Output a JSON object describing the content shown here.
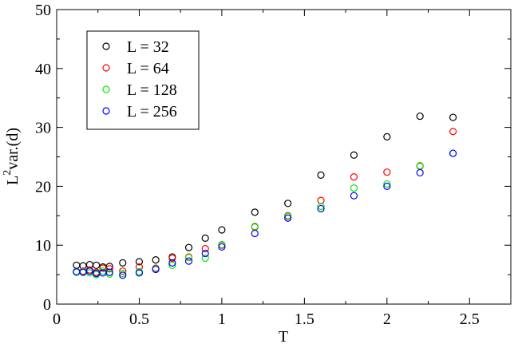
{
  "chart_data": {
    "type": "scatter",
    "xlabel": "T",
    "ylabel_main": "L",
    "ylabel_sup": "2",
    "ylabel_rest": "var.(d)",
    "xlim": [
      0,
      2.75
    ],
    "ylim": [
      0,
      50
    ],
    "xticks": [
      0,
      0.5,
      1,
      1.5,
      2,
      2.5
    ],
    "xtick_labels": [
      "0",
      "0.5",
      "1",
      "1.5",
      "2",
      "2.5"
    ],
    "yticks": [
      0,
      10,
      20,
      30,
      40,
      50
    ],
    "ytick_labels": [
      "0",
      "10",
      "20",
      "30",
      "40",
      "50"
    ],
    "grid": false,
    "legend_position": "top-left",
    "marker": "open-circle",
    "series": [
      {
        "name": "L = 32",
        "color": "#000000",
        "x": [
          0.12,
          0.16,
          0.2,
          0.24,
          0.28,
          0.32,
          0.4,
          0.5,
          0.6,
          0.7,
          0.8,
          0.9,
          1.0,
          1.2,
          1.4,
          1.6,
          1.8,
          2.0,
          2.2,
          2.4
        ],
        "y": [
          6.6,
          6.5,
          6.7,
          6.6,
          6.3,
          6.4,
          7.0,
          7.2,
          7.5,
          8.0,
          9.6,
          11.2,
          12.6,
          15.6,
          17.1,
          21.9,
          25.3,
          28.4,
          31.9,
          31.7
        ]
      },
      {
        "name": "L = 64",
        "color": "#ff0000",
        "x": [
          0.12,
          0.16,
          0.2,
          0.24,
          0.28,
          0.32,
          0.4,
          0.5,
          0.6,
          0.7,
          0.8,
          0.9,
          1.0,
          1.2,
          1.4,
          1.6,
          1.8,
          2.0,
          2.2,
          2.4
        ],
        "y": [
          5.5,
          5.6,
          5.8,
          5.4,
          6.1,
          6.0,
          5.6,
          6.3,
          6.1,
          7.8,
          8.0,
          9.4,
          10.0,
          13.1,
          15.0,
          17.6,
          21.6,
          22.4,
          23.4,
          29.3
        ]
      },
      {
        "name": "L = 128",
        "color": "#00ee00",
        "x": [
          0.12,
          0.16,
          0.2,
          0.24,
          0.28,
          0.32,
          0.4,
          0.5,
          0.6,
          0.7,
          0.8,
          0.9,
          1.0,
          1.2,
          1.4,
          1.6,
          1.8,
          2.0,
          2.2,
          2.4
        ],
        "y": [
          5.4,
          5.5,
          5.3,
          5.0,
          5.6,
          5.1,
          5.2,
          5.5,
          6.0,
          6.6,
          7.9,
          7.8,
          10.1,
          13.2,
          14.9,
          16.6,
          19.7,
          20.4,
          23.5,
          25.6
        ]
      },
      {
        "name": "L = 256",
        "color": "#0000ff",
        "x": [
          0.12,
          0.16,
          0.2,
          0.24,
          0.28,
          0.32,
          0.4,
          0.5,
          0.6,
          0.7,
          0.8,
          0.9,
          1.0,
          1.2,
          1.4,
          1.6,
          1.8,
          2.0,
          2.2,
          2.4
        ],
        "y": [
          5.5,
          5.4,
          5.6,
          5.2,
          5.3,
          5.4,
          4.9,
          5.3,
          5.9,
          7.0,
          7.3,
          8.6,
          9.7,
          12.0,
          14.6,
          16.2,
          18.4,
          20.0,
          22.3,
          25.6
        ]
      }
    ]
  }
}
